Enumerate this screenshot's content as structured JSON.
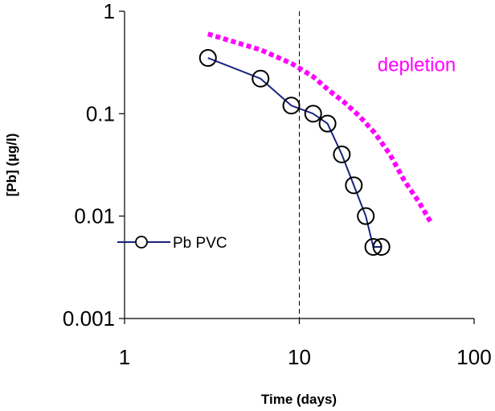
{
  "chart_data": {
    "type": "line",
    "xlabel": "Time (days)",
    "ylabel": "[Pb] (µg/l)",
    "xscale": "log",
    "yscale": "log",
    "xlim": [
      1,
      100
    ],
    "ylim": [
      0.001,
      1
    ],
    "x_ticks": [
      {
        "value": 1,
        "label": "1"
      },
      {
        "value": 10,
        "label": "10"
      },
      {
        "value": 100,
        "label": "100"
      }
    ],
    "y_ticks": [
      {
        "value": 1,
        "label": "1"
      },
      {
        "value": 0.1,
        "label": "0.1"
      },
      {
        "value": 0.01,
        "label": "0.01"
      },
      {
        "value": 0.001,
        "label": "0.001"
      }
    ],
    "grid": false,
    "legend_position": "left",
    "series": [
      {
        "name": "Pb PVC",
        "color": "#1a237e",
        "marker": "open-circle",
        "x": [
          3,
          6,
          9,
          12,
          14.5,
          17.5,
          20.5,
          24,
          26.5,
          29.5
        ],
        "y": [
          0.35,
          0.22,
          0.12,
          0.1,
          0.08,
          0.04,
          0.02,
          0.01,
          0.005,
          0.005
        ]
      }
    ],
    "curves": [
      {
        "color": "#ff00ff",
        "style": "dotted-thick",
        "x": [
          3,
          6,
          9,
          12,
          15,
          18,
          22,
          27,
          33,
          40,
          48,
          57
        ],
        "y": [
          0.6,
          0.42,
          0.31,
          0.23,
          0.165,
          0.13,
          0.095,
          0.065,
          0.04,
          0.022,
          0.014,
          0.0085
        ]
      }
    ],
    "annotations": [
      {
        "text": "depletion",
        "color": "#ff00ff",
        "x": 28,
        "y": 0.3
      },
      {
        "type": "vertical-dashed-line",
        "x": 10
      }
    ]
  }
}
